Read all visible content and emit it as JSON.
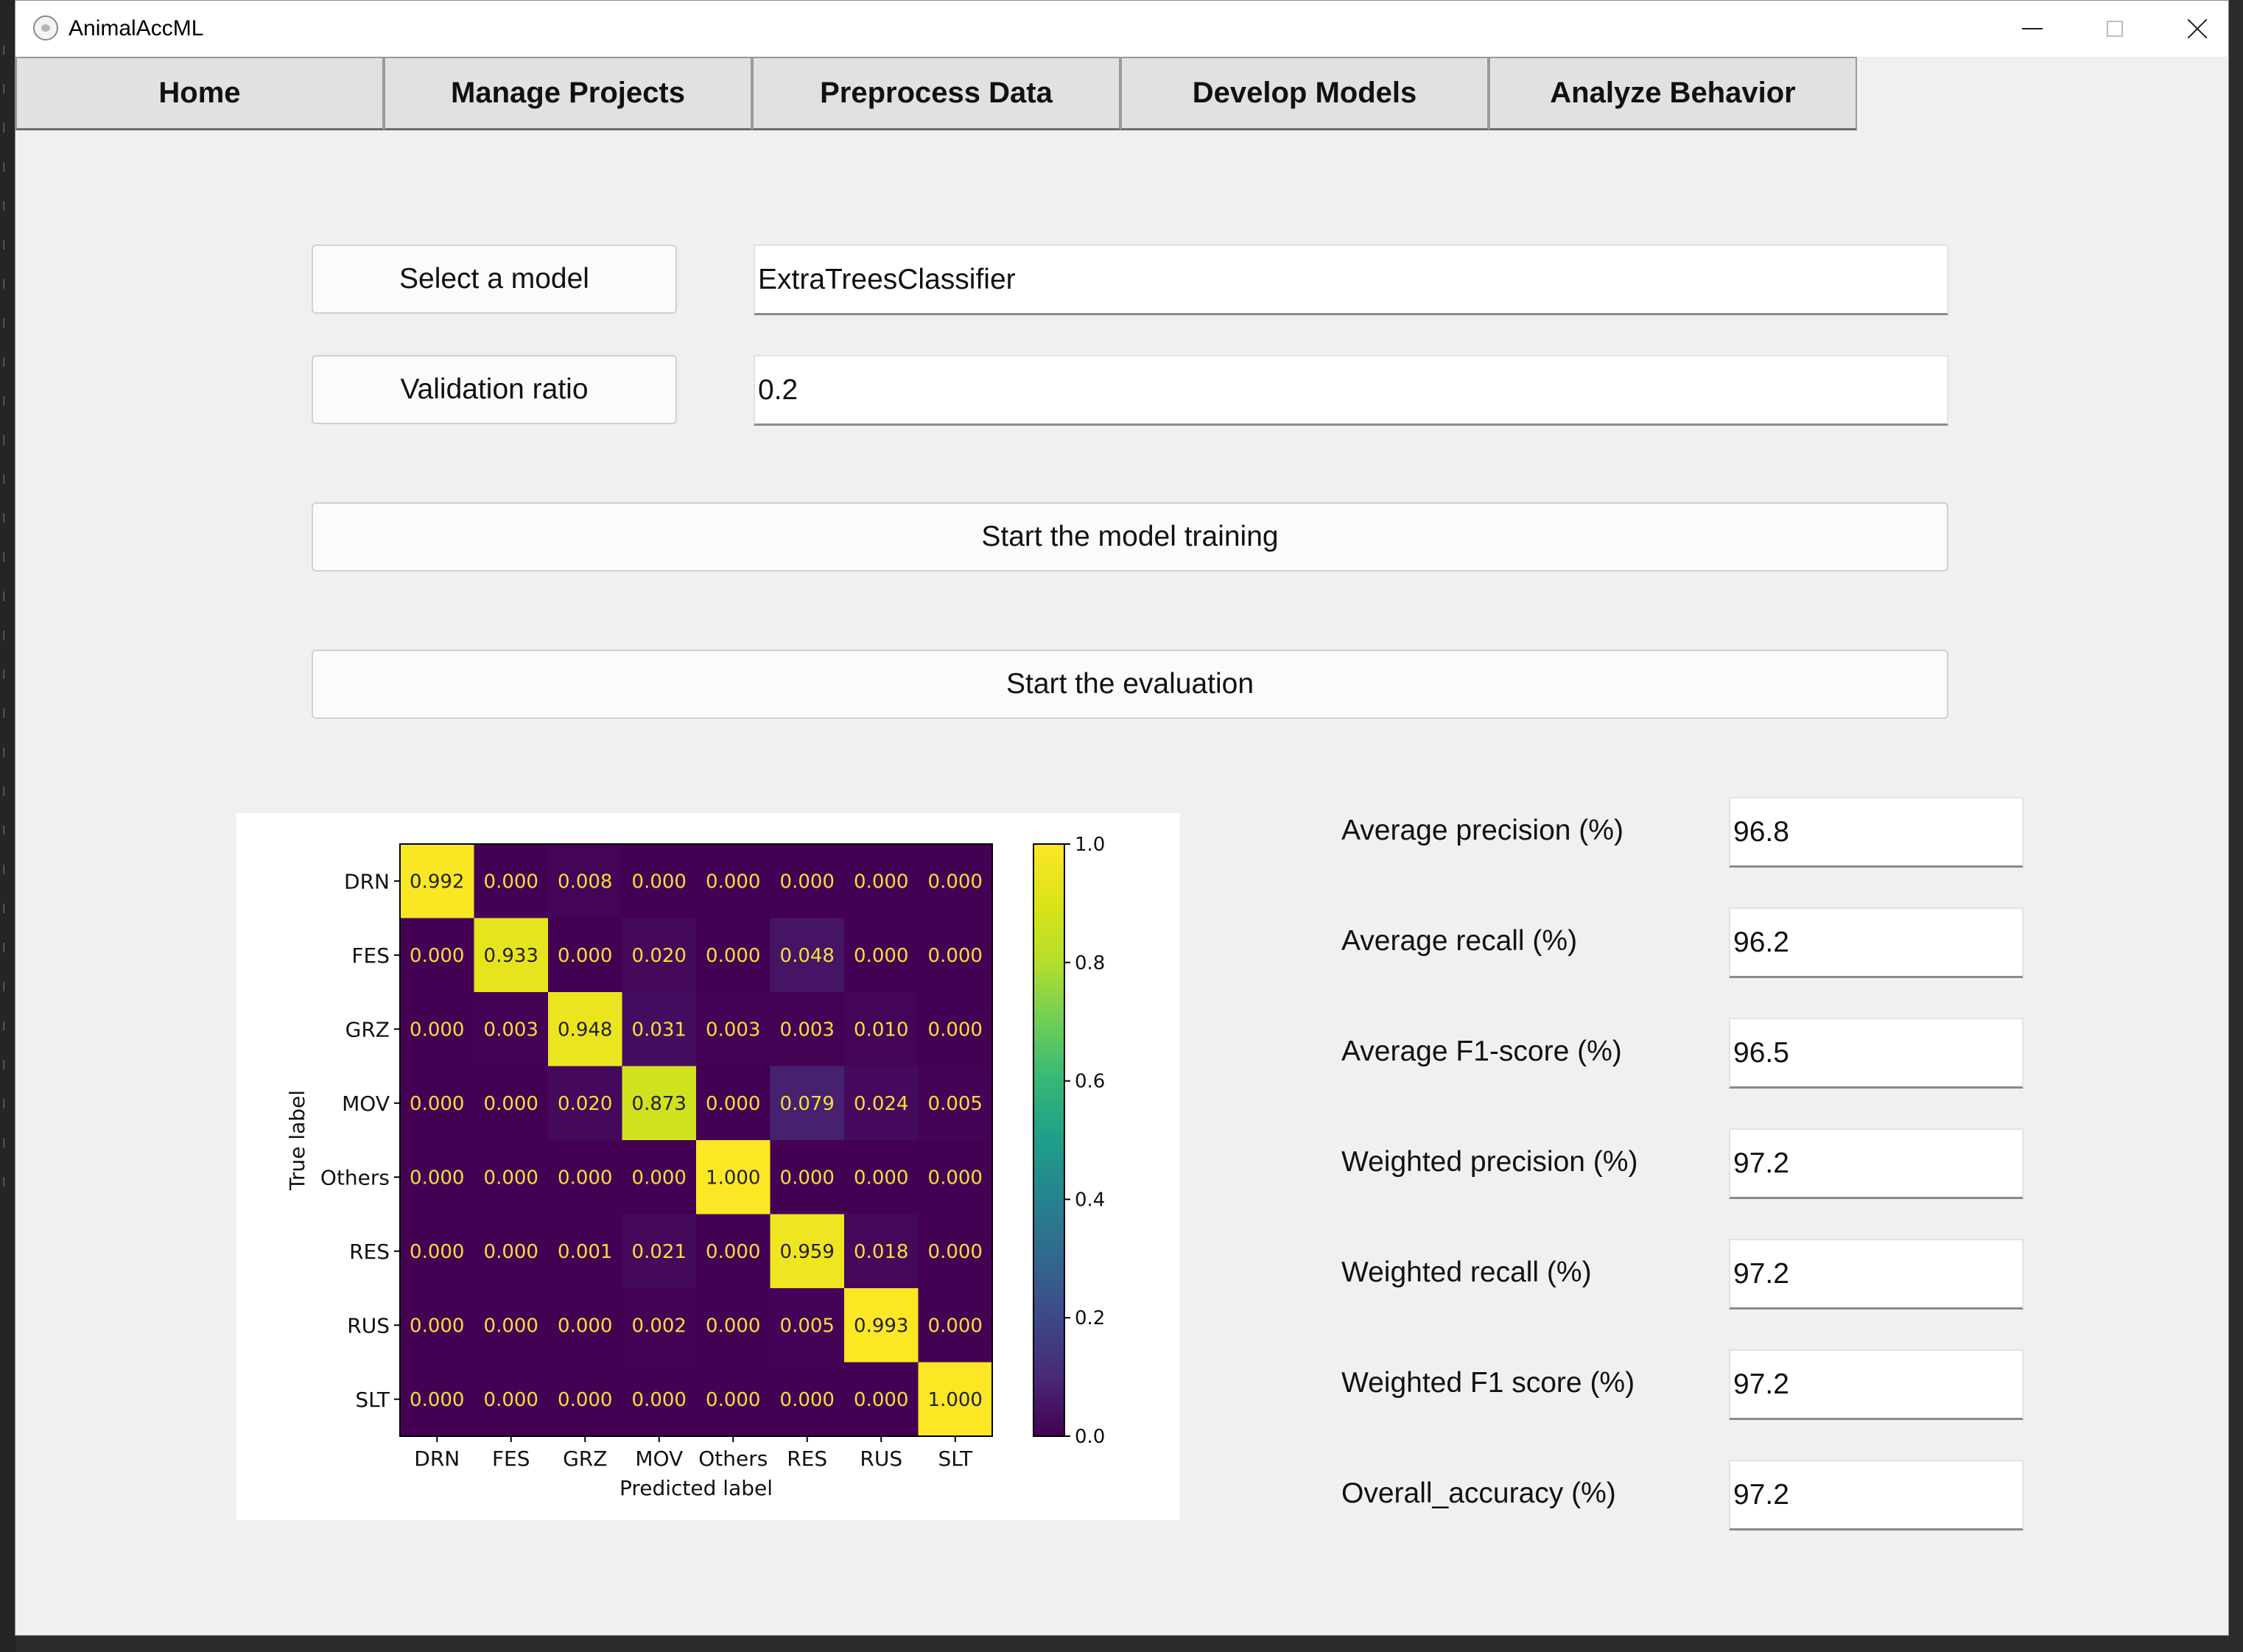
{
  "window": {
    "title": "AnimalAccML",
    "controls": [
      "minimize",
      "maximize",
      "close"
    ]
  },
  "tabs": [
    {
      "label": "Home"
    },
    {
      "label": "Manage Projects"
    },
    {
      "label": "Preprocess Data"
    },
    {
      "label": "Develop Models"
    },
    {
      "label": "Analyze Behavior"
    }
  ],
  "form": {
    "select_model_label": "Select a model",
    "model_value": "ExtraTreesClassifier",
    "validation_ratio_label": "Validation ratio",
    "validation_ratio_value": "0.2",
    "start_training_label": "Start the model training",
    "start_evaluation_label": "Start the evaluation"
  },
  "metrics": [
    {
      "label": "Average precision (%)",
      "value": "96.8"
    },
    {
      "label": "Average recall (%)",
      "value": "96.2"
    },
    {
      "label": "Average F1-score (%)",
      "value": "96.5"
    },
    {
      "label": "Weighted precision (%)",
      "value": "97.2"
    },
    {
      "label": "Weighted recall (%)",
      "value": "97.2"
    },
    {
      "label": "Weighted F1 score (%)",
      "value": "97.2"
    },
    {
      "label": "Overall_accuracy (%)",
      "value": "97.2"
    }
  ],
  "chart_data": {
    "type": "heatmap",
    "xlabel": "Predicted label",
    "ylabel": "True label",
    "x_categories": [
      "DRN",
      "FES",
      "GRZ",
      "MOV",
      "Others",
      "RES",
      "RUS",
      "SLT"
    ],
    "y_categories": [
      "DRN",
      "FES",
      "GRZ",
      "MOV",
      "Others",
      "RES",
      "RUS",
      "SLT"
    ],
    "values": [
      [
        0.992,
        0.0,
        0.008,
        0.0,
        0.0,
        0.0,
        0.0,
        0.0
      ],
      [
        0.0,
        0.933,
        0.0,
        0.02,
        0.0,
        0.048,
        0.0,
        0.0
      ],
      [
        0.0,
        0.003,
        0.948,
        0.031,
        0.003,
        0.003,
        0.01,
        0.0
      ],
      [
        0.0,
        0.0,
        0.02,
        0.873,
        0.0,
        0.079,
        0.024,
        0.005
      ],
      [
        0.0,
        0.0,
        0.0,
        0.0,
        1.0,
        0.0,
        0.0,
        0.0
      ],
      [
        0.0,
        0.0,
        0.001,
        0.021,
        0.0,
        0.959,
        0.018,
        0.0
      ],
      [
        0.0,
        0.0,
        0.0,
        0.002,
        0.0,
        0.005,
        0.993,
        0.0
      ],
      [
        0.0,
        0.0,
        0.0,
        0.0,
        0.0,
        0.0,
        0.0,
        1.0
      ]
    ],
    "colorscale": "viridis",
    "colorbar_range": [
      0.0,
      1.0
    ],
    "colorbar_ticks": [
      "0.0",
      "0.2",
      "0.4",
      "0.6",
      "0.8",
      "1.0"
    ],
    "value_format": "3 decimals"
  }
}
